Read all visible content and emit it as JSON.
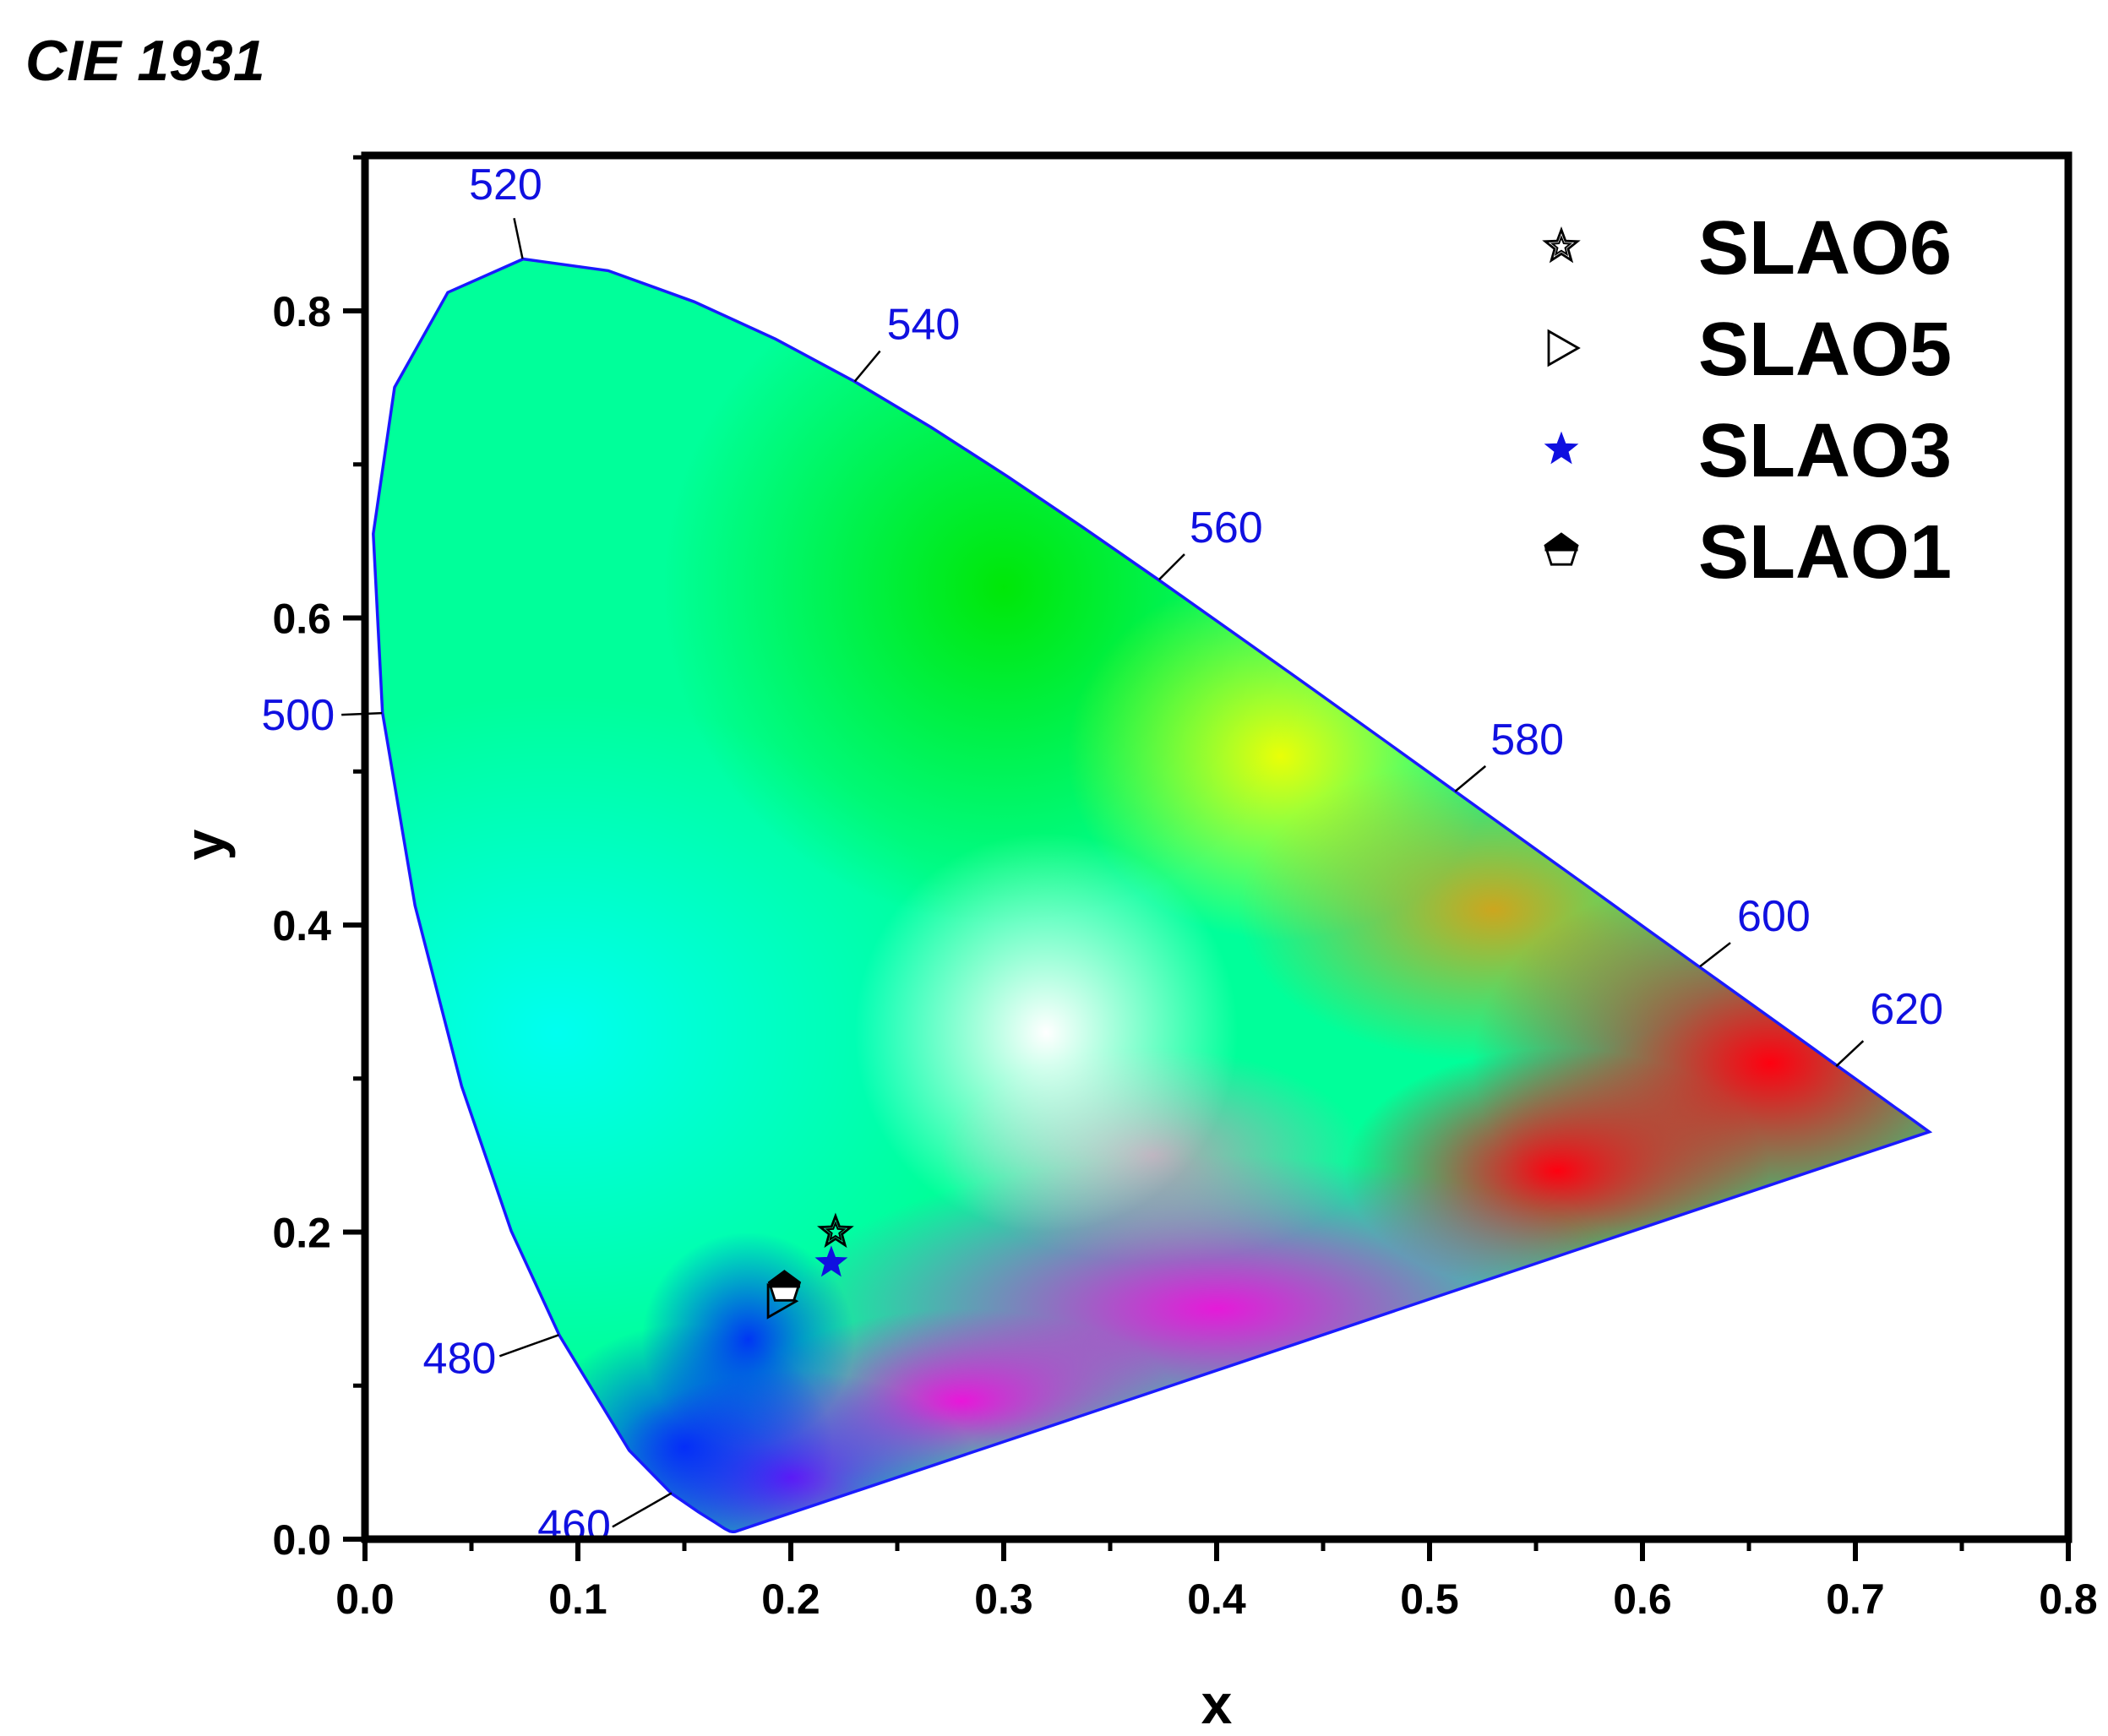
{
  "chart_data": {
    "type": "scatter",
    "title": "CIE 1931",
    "xlabel": "x",
    "ylabel": "y",
    "xlim": [
      0.0,
      0.8
    ],
    "ylim": [
      0.0,
      0.8
    ],
    "x_ticks": [
      "0.0",
      "0.1",
      "0.2",
      "0.3",
      "0.4",
      "0.5",
      "0.6",
      "0.7",
      "0.8"
    ],
    "y_ticks": [
      "0.0",
      "0.2",
      "0.4",
      "0.6",
      "0.8"
    ],
    "grid": false,
    "legend_position": "top-right",
    "locus_color": "#1a1aff",
    "wavelength_label_color": "#1010e0",
    "wavelength_labels": [
      {
        "label": "460",
        "x": 0.144,
        "y": 0.03
      },
      {
        "label": "480",
        "x": 0.091,
        "y": 0.133
      },
      {
        "label": "500",
        "x": 0.008,
        "y": 0.538
      },
      {
        "label": "520",
        "x": 0.074,
        "y": 0.834
      },
      {
        "label": "540",
        "x": 0.23,
        "y": 0.754
      },
      {
        "label": "560",
        "x": 0.373,
        "y": 0.625
      },
      {
        "label": "580",
        "x": 0.512,
        "y": 0.487
      },
      {
        "label": "600",
        "x": 0.627,
        "y": 0.373
      },
      {
        "label": "620",
        "x": 0.691,
        "y": 0.308
      }
    ],
    "series": [
      {
        "name": "SLAO6",
        "marker": "star-open",
        "color": "#000000",
        "points": [
          {
            "x": 0.221,
            "y": 0.2
          }
        ]
      },
      {
        "name": "SLAO5",
        "marker": "triangle-right-open",
        "color": "#000000",
        "points": [
          {
            "x": 0.195,
            "y": 0.155
          }
        ]
      },
      {
        "name": "SLAO3",
        "marker": "star-filled",
        "color": "#1010e0",
        "points": [
          {
            "x": 0.219,
            "y": 0.18
          }
        ]
      },
      {
        "name": "SLAO1",
        "marker": "pentagon-half",
        "color": "#000000",
        "points": [
          {
            "x": 0.197,
            "y": 0.164
          }
        ]
      }
    ]
  }
}
